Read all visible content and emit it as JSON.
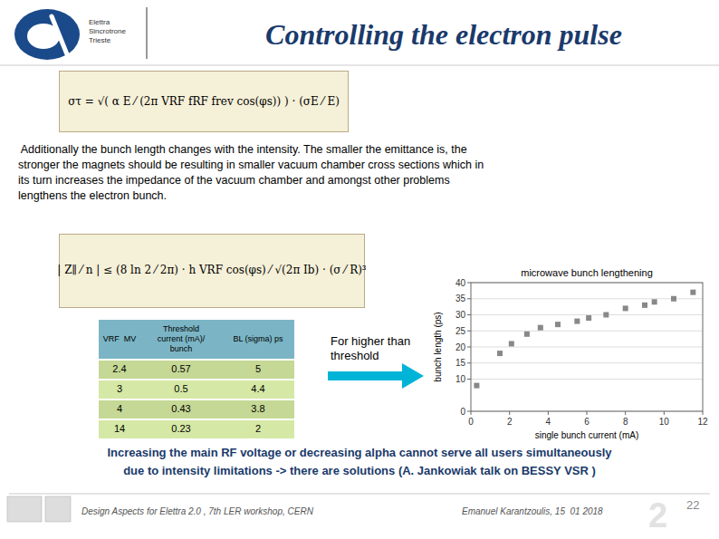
{
  "page": {
    "title": "Controlling the electron pulse",
    "logo_lines": [
      "Elettra",
      "Sincrotrone",
      "Trieste"
    ],
    "formula1": "στ = √( α E ⁄ (2π VRF fRF frev cos(φs)) ) · (σE ⁄ E)",
    "paragraph": [
      " Additionally the bunch length changes with the intensity. The smaller the emittance is, the",
      "stronger the magnets should be resulting in smaller vacuum chamber cross sections which in",
      "its turn increases the impedance of the vacuum chamber and amongst other problems",
      "lengthens the electron bunch."
    ],
    "formula2": "| Z∥ ⁄ n | ≤ (8 ln 2 ⁄ 2π) · h VRF cos(φs) ⁄ √(2π Ib) · (σ ⁄ R)³",
    "table": {
      "headers": [
        "VRF  MV",
        "Threshold\ncurrent (mA)/\nbunch",
        "BL (sigma) ps"
      ],
      "rows": [
        [
          "2.4",
          "0.57",
          "5"
        ],
        [
          "3",
          "0.5",
          "4.4"
        ],
        [
          "4",
          "0.43",
          "3.8"
        ],
        [
          "14",
          "0.23",
          "2"
        ]
      ]
    },
    "side_text": "For higher than\nthreshold",
    "bottom_text": [
      "Increasing the main RF voltage or decreasing alpha cannot serve all users simultaneously",
      "due to intensity limitations -> there are solutions (A. Jankowiak talk on BESSY VSR )"
    ],
    "footer_left": "Design Aspects for Elettra 2.0 , 7th LER workshop, CERN",
    "footer_right": "Emanuel Karantzoulis, 15  01 2018",
    "page_number": "22",
    "watermark": "2"
  },
  "chart_data": {
    "type": "scatter",
    "title": "microwave bunch lengthening",
    "x_label": "single bunch current (mA)",
    "y_label": "bunch length (ps)",
    "x": [
      0.3,
      1.5,
      2.1,
      2.9,
      3.6,
      4.5,
      5.5,
      6.1,
      7.0,
      8.0,
      9.0,
      9.5,
      10.5,
      11.5
    ],
    "values": [
      8,
      18,
      21,
      24,
      26,
      27,
      28,
      29,
      30,
      32,
      33,
      34,
      35,
      37
    ],
    "color": "#888888",
    "marker": "square",
    "xlim": [
      0,
      12
    ],
    "ylim": [
      0,
      40
    ],
    "xticks": [
      0,
      2,
      4,
      6,
      8,
      10,
      12
    ],
    "yticks": [
      0,
      10,
      15,
      20,
      25,
      30,
      35,
      40
    ],
    "grid": true
  }
}
